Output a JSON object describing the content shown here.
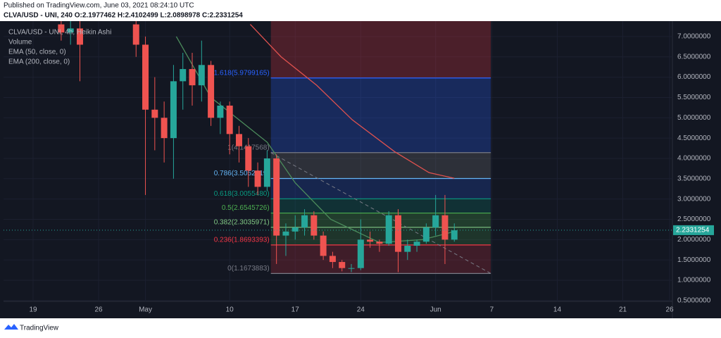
{
  "header": {
    "published": "Published on TradingView.com, June 03, 2021 08:24:10 UTC",
    "ohlc": "CLVA/USD - UNI, 240  O:2.1977462 H:2.4102499 L:2.0898978 C:2.2331254"
  },
  "chart_data": {
    "type": "candlestick",
    "legend": [
      "CLVA/USD - UNI, 4h, Heikin Ashi",
      "Volume",
      "EMA (50, close, 0)",
      "EMA (200, close, 0)"
    ],
    "x": [
      3,
      4,
      5,
      11,
      12,
      13,
      14,
      15,
      16,
      17,
      18,
      19,
      20,
      21,
      22,
      23,
      24,
      25,
      26,
      27,
      28,
      29,
      30,
      31,
      32,
      33,
      34,
      35,
      36,
      37,
      38,
      39,
      40,
      41,
      42,
      43,
      44,
      45
    ],
    "open": [
      7.3,
      7.1,
      7.2,
      7.3,
      6.8,
      5.2,
      5.0,
      4.5,
      5.9,
      6.2,
      5.8,
      6.3,
      5.0,
      5.3,
      4.6,
      4.3,
      3.7,
      3.3,
      4.0,
      2.1,
      2.2,
      2.3,
      2.6,
      2.1,
      1.6,
      1.45,
      1.3,
      1.3,
      2.0,
      1.95,
      1.9,
      2.6,
      1.7,
      1.85,
      1.95,
      2.3,
      2.6,
      2.0
    ],
    "high": [
      7.38,
      7.38,
      7.38,
      7.38,
      7.0,
      6.0,
      5.4,
      6.3,
      6.6,
      6.6,
      6.9,
      6.4,
      5.4,
      5.4,
      4.8,
      4.5,
      3.9,
      4.2,
      4.1,
      2.4,
      2.6,
      2.75,
      2.7,
      2.2,
      1.7,
      1.5,
      1.4,
      2.5,
      2.2,
      2.0,
      2.7,
      2.75,
      2.0,
      2.0,
      2.4,
      3.1,
      3.1,
      2.4
    ],
    "low": [
      6.9,
      6.8,
      5.9,
      6.5,
      3.1,
      4.2,
      3.9,
      3.5,
      5.2,
      5.3,
      5.4,
      4.8,
      4.6,
      4.1,
      3.9,
      3.3,
      3.1,
      3.2,
      1.4,
      1.6,
      2.0,
      2.1,
      2.0,
      1.5,
      1.3,
      1.22,
      1.2,
      1.25,
      1.8,
      1.7,
      1.85,
      1.2,
      1.5,
      1.7,
      1.9,
      2.1,
      1.4,
      1.95
    ],
    "close": [
      7.1,
      7.2,
      6.8,
      6.8,
      5.2,
      5.0,
      4.5,
      5.9,
      6.2,
      5.8,
      6.3,
      5.0,
      5.3,
      4.6,
      4.3,
      3.7,
      3.3,
      4.0,
      2.1,
      2.2,
      2.3,
      2.6,
      2.1,
      1.6,
      1.45,
      1.3,
      1.3,
      2.0,
      1.95,
      1.9,
      2.6,
      1.7,
      1.85,
      1.95,
      2.3,
      2.6,
      2.0,
      2.23
    ],
    "up_color": "#26a69a",
    "down_color": "#ef5350",
    "ema": [
      {
        "name": "EMA (50, close, 0)",
        "color": "#4c8c5c",
        "x": [
          15.3,
          19,
          25,
          28,
          31.8,
          37,
          41.6,
          45
        ],
        "values": [
          7.0,
          5.5,
          4.4,
          3.4,
          2.5,
          1.93,
          2.0,
          2.2
        ]
      },
      {
        "name": "EMA (200, close, 0)",
        "color": "#e0524f",
        "x": [
          23.2,
          26.5,
          30.3,
          34.1,
          38.6,
          42.3,
          45
        ],
        "values": [
          7.3,
          6.5,
          5.8,
          4.95,
          4.17,
          3.65,
          3.51
        ]
      }
    ],
    "last_price": {
      "value": 2.2331254,
      "label": "2.2331254"
    },
    "fib": {
      "x": [
        25.4,
        48.9
      ],
      "levels": [
        {
          "price": 1.1673883,
          "label": "0(1.1673883)",
          "color": "#787b86"
        },
        {
          "price": 1.8693393,
          "label": "0.236(1.8693393)",
          "color": "#f23645"
        },
        {
          "price": 2.3035971,
          "label": "0.382(2.3035971)",
          "color": "#81c784"
        },
        {
          "price": 2.6545726,
          "label": "0.5(2.6545726)",
          "color": "#4caf50"
        },
        {
          "price": 3.005548,
          "label": "0.618(3.0055480)",
          "color": "#089981"
        },
        {
          "price": 3.5052419,
          "label": "0.786(3.5052419)",
          "color": "#64b5f6"
        },
        {
          "price": 4.1417568,
          "label": "1(4.1417568)",
          "color": "#787b86"
        },
        {
          "price": 5.9799165,
          "label": "1.618(5.9799165)",
          "color": "#2962ff"
        }
      ]
    },
    "xlim": [
      -3.16,
      68.3
    ],
    "ylim": [
      0.48,
      7.38
    ],
    "xticks": [
      {
        "value": 0,
        "label": "19"
      },
      {
        "value": 7,
        "label": "26"
      },
      {
        "value": 12,
        "label": "May"
      },
      {
        "value": 21,
        "label": "10"
      },
      {
        "value": 28,
        "label": "17"
      },
      {
        "value": 35,
        "label": "24"
      },
      {
        "value": 43,
        "label": "Jun"
      },
      {
        "value": 49,
        "label": "7"
      },
      {
        "value": 56,
        "label": "14"
      },
      {
        "value": 63,
        "label": "21"
      },
      {
        "value": 68,
        "label": "26"
      }
    ],
    "yticks": [
      {
        "value": 0.5,
        "label": "0.5000000"
      },
      {
        "value": 1,
        "label": "1.0000000"
      },
      {
        "value": 1.5,
        "label": "1.5000000"
      },
      {
        "value": 2,
        "label": "2.0000000"
      },
      {
        "value": 2.5,
        "label": "2.5000000"
      },
      {
        "value": 3,
        "label": "3.0000000"
      },
      {
        "value": 3.5,
        "label": "3.5000000"
      },
      {
        "value": 4,
        "label": "4.0000000"
      },
      {
        "value": 4.5,
        "label": "4.5000000"
      },
      {
        "value": 5,
        "label": "5.0000000"
      },
      {
        "value": 5.5,
        "label": "5.5000000"
      },
      {
        "value": 6,
        "label": "6.0000000"
      },
      {
        "value": 6.5,
        "label": "6.5000000"
      },
      {
        "value": 7,
        "label": "7.0000000"
      }
    ]
  },
  "footer": "TradingView"
}
